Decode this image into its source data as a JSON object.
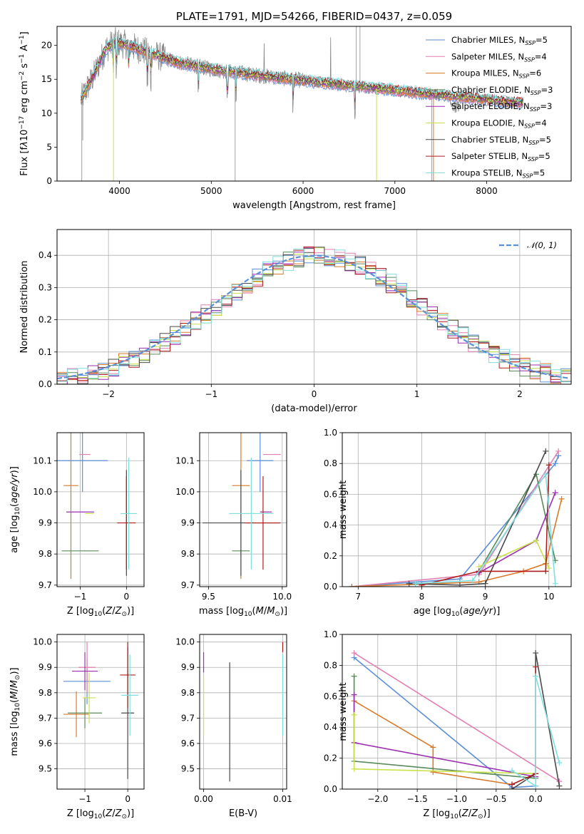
{
  "colors": {
    "chabrier_miles": "#5b8fd6",
    "salpeter_miles": "#e17fb0",
    "kroupa_miles": "#d87a2a",
    "chabrier_elodie": "#5a8a5a",
    "salpeter_elodie": "#9b2fb0",
    "kroupa_elodie": "#c9e24b",
    "chabrier_stelib": "#4a4a4a",
    "salpeter_stelib": "#b01c1c",
    "kroupa_stelib": "#7fdfe0",
    "data": "#8a8a8a",
    "normal": "#5b8fd6"
  },
  "chart_data": [
    {
      "id": "spectrum",
      "type": "line",
      "title": "PLATE=1791, MJD=54266, FIBERID=0437, z=0.059",
      "xlabel": "wavelength [Angstrom, rest frame]",
      "ylabel_html": "Flux [f<tspan font-style='italic'>λ</tspan>10<tspan dy='-5' font-size='9'>−17</tspan><tspan dy='5'> erg cm</tspan><tspan dy='-5' font-size='9'>−2</tspan><tspan dy='5'> s</tspan><tspan dy='-5' font-size='9'>−1</tspan><tspan dy='5'> A</tspan><tspan dy='-5' font-size='9'>−1</tspan><tspan dy='5'>]</tspan>",
      "xlim": [
        3320,
        8920
      ],
      "ylim": [
        0,
        22.8
      ],
      "xticks": [
        4000,
        5000,
        6000,
        7000,
        8000
      ],
      "yticks": [
        0,
        5,
        10,
        15,
        20
      ],
      "grid": false,
      "legend": "top-right",
      "continuum": [
        [
          3580,
          12.0
        ],
        [
          3700,
          15.0
        ],
        [
          3850,
          19.5
        ],
        [
          3950,
          20.5
        ],
        [
          4100,
          20.0
        ],
        [
          4300,
          19.0
        ],
        [
          4600,
          17.6
        ],
        [
          5000,
          16.5
        ],
        [
          5500,
          15.6
        ],
        [
          6000,
          14.8
        ],
        [
          6500,
          14.1
        ],
        [
          7000,
          13.4
        ],
        [
          7400,
          12.8
        ],
        [
          7800,
          12.3
        ],
        [
          8200,
          11.7
        ],
        [
          8400,
          11.5
        ]
      ],
      "legend_entries": [
        {
          "key": "chabrier_miles",
          "label": "Chabrier MILES, N",
          "nssp": "5"
        },
        {
          "key": "salpeter_miles",
          "label": "Salpeter MILES, N",
          "nssp": "4"
        },
        {
          "key": "kroupa_miles",
          "label": "Kroupa MILES, N",
          "nssp": "6"
        },
        {
          "key": "chabrier_elodie",
          "label": "Chabrier ELODIE, N",
          "nssp": "3"
        },
        {
          "key": "salpeter_elodie",
          "label": "Salpeter ELODIE, N",
          "nssp": "3"
        },
        {
          "key": "kroupa_elodie",
          "label": "Kroupa ELODIE, N",
          "nssp": "4"
        },
        {
          "key": "chabrier_stelib",
          "label": "Chabrier STELIB, N",
          "nssp": "5"
        },
        {
          "key": "salpeter_stelib",
          "label": "Salpeter STELIB, N",
          "nssp": "5"
        },
        {
          "key": "kroupa_stelib",
          "label": "Kroupa STELIB, N",
          "nssp": "5"
        }
      ],
      "legend_sub": "SSP"
    },
    {
      "id": "residuals",
      "type": "line",
      "xlabel": "(data-model)/error",
      "ylabel": "Normed distribution",
      "xlim": [
        -2.5,
        2.5
      ],
      "ylim": [
        0,
        0.48
      ],
      "xticks": [
        -2,
        -1,
        0,
        1,
        2
      ],
      "xticklabels": [
        "−2",
        "−1",
        "0",
        "1",
        "2"
      ],
      "yticks": [
        0.0,
        0.1,
        0.2,
        0.3,
        0.4
      ],
      "yticklabels": [
        "0.0",
        "0.1",
        "0.2",
        "0.3",
        "0.4"
      ],
      "grid": true,
      "legend": "top-right",
      "legend_label": "𝒩(0, 1)",
      "bin_width": 0.1
    },
    {
      "id": "age_vs_Z",
      "type": "scatter",
      "xlabel_html": "Z [log<tspan dy='3' font-size='9'>10</tspan><tspan dy='-3'>(</tspan><tspan font-style='italic'>Z</tspan>/<tspan font-style='italic'>Z</tspan><tspan dy='3' font-size='9'>⊙</tspan><tspan dy='-3'>)]</tspan>",
      "ylabel_html": "age  [log<tspan dy='3' font-size='9'>10</tspan><tspan dy='-3'>(</tspan><tspan font-style='italic'>age/yr</tspan>)]",
      "xlim": [
        -1.5,
        0.38
      ],
      "ylim": [
        9.695,
        10.19
      ],
      "xticks": [
        -1,
        0
      ],
      "xticklabels": [
        "−1",
        "0"
      ],
      "yticks": [
        9.7,
        9.8,
        9.9,
        10.0,
        10.1
      ],
      "yticklabels": [
        "9.7",
        "9.8",
        "9.9",
        "10.0",
        "10.1"
      ],
      "grid": true,
      "points": [
        {
          "key": "chabrier_miles",
          "x": -0.95,
          "xerr": 0.55,
          "y": 10.1,
          "yerr": 0.1
        },
        {
          "key": "salpeter_miles",
          "x": -0.9,
          "xerr": 0.12,
          "y": 10.12,
          "yerr": 0.0
        },
        {
          "key": "kroupa_miles",
          "x": -1.2,
          "xerr": 0.16,
          "y": 10.02,
          "yerr": 0.3
        },
        {
          "key": "chabrier_elodie",
          "x": -1.0,
          "xerr": 0.4,
          "y": 9.81,
          "yerr": 0.0
        },
        {
          "key": "salpeter_elodie",
          "x": -1.0,
          "xerr": 0.3,
          "y": 9.935,
          "yerr": 0.0
        },
        {
          "key": "kroupa_elodie",
          "x": -0.8,
          "xerr": 0.0,
          "y": 9.93,
          "yerr": 0.0
        },
        {
          "key": "chabrier_stelib",
          "x": 0.0,
          "xerr": 0.0,
          "y": 9.9,
          "yerr": 0.17
        },
        {
          "key": "salpeter_stelib",
          "x": 0.0,
          "xerr": 0.2,
          "y": 9.9,
          "yerr": 0.15
        },
        {
          "key": "kroupa_stelib",
          "x": 0.05,
          "xerr": 0.18,
          "y": 9.93,
          "yerr": 0.18
        }
      ]
    },
    {
      "id": "age_vs_mass",
      "type": "scatter",
      "xlabel_html": "mass [log<tspan dy='3' font-size='9'>10</tspan><tspan dy='-3'>(</tspan><tspan font-style='italic'>M</tspan>/<tspan font-style='italic'>M</tspan><tspan dy='3' font-size='9'>⊙</tspan><tspan dy='-3'>)]</tspan>",
      "xlim": [
        9.44,
        10.03
      ],
      "ylim": [
        9.695,
        10.19
      ],
      "xticks": [
        9.5,
        10.0
      ],
      "xticklabels": [
        "9.5",
        "10.0"
      ],
      "yticks": [
        9.7,
        9.8,
        9.9,
        10.0,
        10.1
      ],
      "yticklabels": [
        "9.7",
        "9.8",
        "9.9",
        "10.0",
        "10.1"
      ],
      "grid": true,
      "points": [
        {
          "key": "chabrier_miles",
          "x": 9.85,
          "xerr": 0.09,
          "y": 10.1,
          "yerr": 0.1
        },
        {
          "key": "salpeter_miles",
          "x": 9.93,
          "xerr": 0.06,
          "y": 10.12,
          "yerr": 0.0
        },
        {
          "key": "kroupa_miles",
          "x": 9.72,
          "xerr": 0.06,
          "y": 10.02,
          "yerr": 0.3
        },
        {
          "key": "chabrier_elodie",
          "x": 9.72,
          "xerr": 0.06,
          "y": 9.81,
          "yerr": 0.0
        },
        {
          "key": "salpeter_elodie",
          "x": 9.89,
          "xerr": 0.04,
          "y": 9.935,
          "yerr": 0.0
        },
        {
          "key": "kroupa_elodie",
          "x": 9.78,
          "xerr": 0.0,
          "y": 9.93,
          "yerr": 0.0
        },
        {
          "key": "chabrier_stelib",
          "x": 9.72,
          "xerr": 0.26,
          "y": 9.9,
          "yerr": 0.17
        },
        {
          "key": "salpeter_stelib",
          "x": 9.87,
          "xerr": 0.12,
          "y": 9.9,
          "yerr": 0.15
        },
        {
          "key": "kroupa_stelib",
          "x": 9.79,
          "xerr": 0.15,
          "y": 9.93,
          "yerr": 0.18
        }
      ]
    },
    {
      "id": "weight_vs_age",
      "type": "line",
      "xlabel_html": "age  [log<tspan dy='3' font-size='9'>10</tspan><tspan dy='-3'>(</tspan><tspan font-style='italic'>age/yr</tspan>)]",
      "ylabel": "mass weight",
      "xlim": [
        6.75,
        10.35
      ],
      "ylim": [
        0.0,
        1.0
      ],
      "xticks": [
        7,
        8,
        9,
        10
      ],
      "xticklabels": [
        "7",
        "8",
        "9",
        "10"
      ],
      "yticks": [
        0.0,
        0.2,
        0.4,
        0.6,
        0.8,
        1.0
      ],
      "yticklabels": [
        "0.0",
        "0.2",
        "0.4",
        "0.6",
        "0.8",
        "1.0"
      ],
      "grid": true,
      "series": [
        {
          "key": "chabrier_miles",
          "x": [
            6.9,
            8.6,
            10.1,
            10.15
          ],
          "y": [
            0.0,
            0.05,
            0.8,
            0.85
          ]
        },
        {
          "key": "salpeter_miles",
          "x": [
            6.9,
            8.9,
            10.15
          ],
          "y": [
            0.0,
            0.08,
            0.88
          ]
        },
        {
          "key": "kroupa_miles",
          "x": [
            6.9,
            8.9,
            9.6,
            9.95,
            10.2
          ],
          "y": [
            0.0,
            0.03,
            0.1,
            0.15,
            0.57
          ]
        },
        {
          "key": "chabrier_elodie",
          "x": [
            8.9,
            9.8,
            10.1
          ],
          "y": [
            0.1,
            0.73,
            0.17
          ]
        },
        {
          "key": "salpeter_elodie",
          "x": [
            8.9,
            9.8,
            10.1
          ],
          "y": [
            0.09,
            0.3,
            0.61
          ]
        },
        {
          "key": "kroupa_elodie",
          "x": [
            8.9,
            9.8,
            10.0
          ],
          "y": [
            0.13,
            0.3,
            0.12
          ]
        },
        {
          "key": "chabrier_stelib",
          "x": [
            7.8,
            8.6,
            9.0,
            9.95
          ],
          "y": [
            0.02,
            0.01,
            0.02,
            0.88
          ]
        },
        {
          "key": "salpeter_stelib",
          "x": [
            8.0,
            8.9,
            9.95,
            10.0
          ],
          "y": [
            0.01,
            0.1,
            0.1,
            0.79
          ]
        },
        {
          "key": "kroupa_stelib",
          "x": [
            7.9,
            8.8,
            9.95,
            10.1
          ],
          "y": [
            0.02,
            0.04,
            0.73,
            0.02
          ]
        }
      ]
    },
    {
      "id": "mass_vs_Z",
      "type": "scatter",
      "xlabel_html": "Z [log<tspan dy='3' font-size='9'>10</tspan><tspan dy='-3'>(</tspan><tspan font-style='italic'>Z</tspan>/<tspan font-style='italic'>Z</tspan><tspan dy='3' font-size='9'>⊙</tspan><tspan dy='-3'>)]</tspan>",
      "ylabel_html": "mass [log<tspan dy='3' font-size='9'>10</tspan><tspan dy='-3'>(</tspan><tspan font-style='italic'>M</tspan>/<tspan font-style='italic'>M</tspan><tspan dy='3' font-size='9'>⊙</tspan><tspan dy='-3'>)]</tspan>",
      "xlim": [
        -1.65,
        0.38
      ],
      "ylim": [
        9.42,
        10.03
      ],
      "xticks": [
        -1,
        0
      ],
      "xticklabels": [
        "−1",
        "0"
      ],
      "yticks": [
        9.5,
        9.6,
        9.7,
        9.8,
        9.9,
        10.0
      ],
      "yticklabels": [
        "9.5",
        "9.6",
        "9.7",
        "9.8",
        "9.9",
        "10.0"
      ],
      "grid": true,
      "points": [
        {
          "key": "chabrier_miles",
          "x": -0.95,
          "xerr": 0.55,
          "y": 9.845,
          "yerr": 0.09
        },
        {
          "key": "salpeter_miles",
          "x": -0.95,
          "xerr": 0.2,
          "y": 9.9,
          "yerr": 0.1
        },
        {
          "key": "kroupa_miles",
          "x": -1.2,
          "xerr": 0.3,
          "y": 9.715,
          "yerr": 0.09
        },
        {
          "key": "chabrier_elodie",
          "x": -1.0,
          "xerr": 0.4,
          "y": 9.72,
          "yerr": 0.06
        },
        {
          "key": "salpeter_elodie",
          "x": -1.0,
          "xerr": 0.3,
          "y": 9.885,
          "yerr": 0.075
        },
        {
          "key": "kroupa_elodie",
          "x": -0.9,
          "xerr": 0.15,
          "y": 9.78,
          "yerr": 0.1
        },
        {
          "key": "chabrier_stelib",
          "x": 0.0,
          "xerr": 0.15,
          "y": 9.72,
          "yerr": 0.26
        },
        {
          "key": "salpeter_stelib",
          "x": 0.0,
          "xerr": 0.18,
          "y": 9.87,
          "yerr": 0.13
        },
        {
          "key": "kroupa_stelib",
          "x": 0.05,
          "xerr": 0.2,
          "y": 9.79,
          "yerr": 0.16
        }
      ]
    },
    {
      "id": "mass_vs_ebv",
      "type": "scatter",
      "xlabel": "E(B-V)",
      "xlim": [
        -0.0005,
        0.0105
      ],
      "ylim": [
        9.42,
        10.03
      ],
      "xticks": [
        0.0,
        0.01
      ],
      "xticklabels": [
        "0.00",
        "0.01"
      ],
      "yticks": [
        9.5,
        9.6,
        9.7,
        9.8,
        9.9,
        10.0
      ],
      "yticklabels": [
        "9.5",
        "9.6",
        "9.7",
        "9.8",
        "9.9",
        "10.0"
      ],
      "grid": true,
      "points": [
        {
          "key": "salpeter_elodie",
          "x": 0.0,
          "xerr": 0.0,
          "y": 9.92,
          "yerr": 0.04
        },
        {
          "key": "kroupa_elodie",
          "x": 0.0,
          "xerr": 0.0,
          "y": 9.75,
          "yerr": 0.12
        },
        {
          "key": "chabrier_stelib",
          "x": 0.0033,
          "xerr": 0.0,
          "y": 9.685,
          "yerr": 0.235
        },
        {
          "key": "salpeter_stelib",
          "x": 0.01,
          "xerr": 0.0,
          "y": 9.98,
          "yerr": 0.02
        },
        {
          "key": "kroupa_stelib",
          "x": 0.01,
          "xerr": 0.0,
          "y": 9.79,
          "yerr": 0.16
        }
      ]
    },
    {
      "id": "weight_vs_Z",
      "type": "line",
      "xlabel_html": "Z [log<tspan dy='3' font-size='9'>10</tspan><tspan dy='-3'>(</tspan><tspan font-style='italic'>Z</tspan>/<tspan font-style='italic'>Z</tspan><tspan dy='3' font-size='9'>⊙</tspan><tspan dy='-3'>)]</tspan>",
      "ylabel": "mass weight",
      "xlim": [
        -2.45,
        0.45
      ],
      "ylim": [
        0.0,
        1.0
      ],
      "xticks": [
        -2.0,
        -1.5,
        -1.0,
        -0.5,
        0.0
      ],
      "xticklabels": [
        "−2.0",
        "−1.5",
        "−1.0",
        "−0.5",
        "0.0"
      ],
      "yticks": [
        0.0,
        0.2,
        0.4,
        0.6,
        0.8,
        1.0
      ],
      "yticklabels": [
        "0.0",
        "0.2",
        "0.4",
        "0.6",
        "0.8",
        "1.0"
      ],
      "grid": true,
      "series": [
        {
          "key": "chabrier_miles",
          "x": [
            -2.3,
            -0.3,
            0.0
          ],
          "y": [
            0.85,
            0.01,
            0.02
          ]
        },
        {
          "key": "salpeter_miles",
          "x": [
            -2.3,
            0.3
          ],
          "y": [
            0.88,
            0.05
          ]
        },
        {
          "key": "kroupa_miles",
          "x": [
            -2.3,
            -1.3,
            -1.3,
            -0.3
          ],
          "y": [
            0.57,
            0.27,
            0.11,
            0.03
          ]
        },
        {
          "key": "chabrier_elodie",
          "x": [
            -2.3,
            -2.3,
            0.0
          ],
          "y": [
            0.73,
            0.18,
            0.07
          ]
        },
        {
          "key": "salpeter_elodie",
          "x": [
            -2.3,
            -2.3,
            0.0
          ],
          "y": [
            0.61,
            0.3,
            0.08
          ]
        },
        {
          "key": "kroupa_elodie",
          "x": [
            -2.3,
            -2.3,
            0.0
          ],
          "y": [
            0.48,
            0.13,
            0.1
          ]
        },
        {
          "key": "chabrier_stelib",
          "x": [
            -0.3,
            0.0,
            0.0,
            0.3
          ],
          "y": [
            0.0,
            0.1,
            0.88,
            0.02
          ]
        },
        {
          "key": "salpeter_stelib",
          "x": [
            -0.3,
            0.0,
            0.0
          ],
          "y": [
            0.03,
            0.1,
            0.79
          ]
        },
        {
          "key": "kroupa_stelib",
          "x": [
            -0.3,
            0.0,
            0.0,
            0.3
          ],
          "y": [
            0.12,
            0.02,
            0.73,
            0.17
          ]
        }
      ]
    }
  ]
}
